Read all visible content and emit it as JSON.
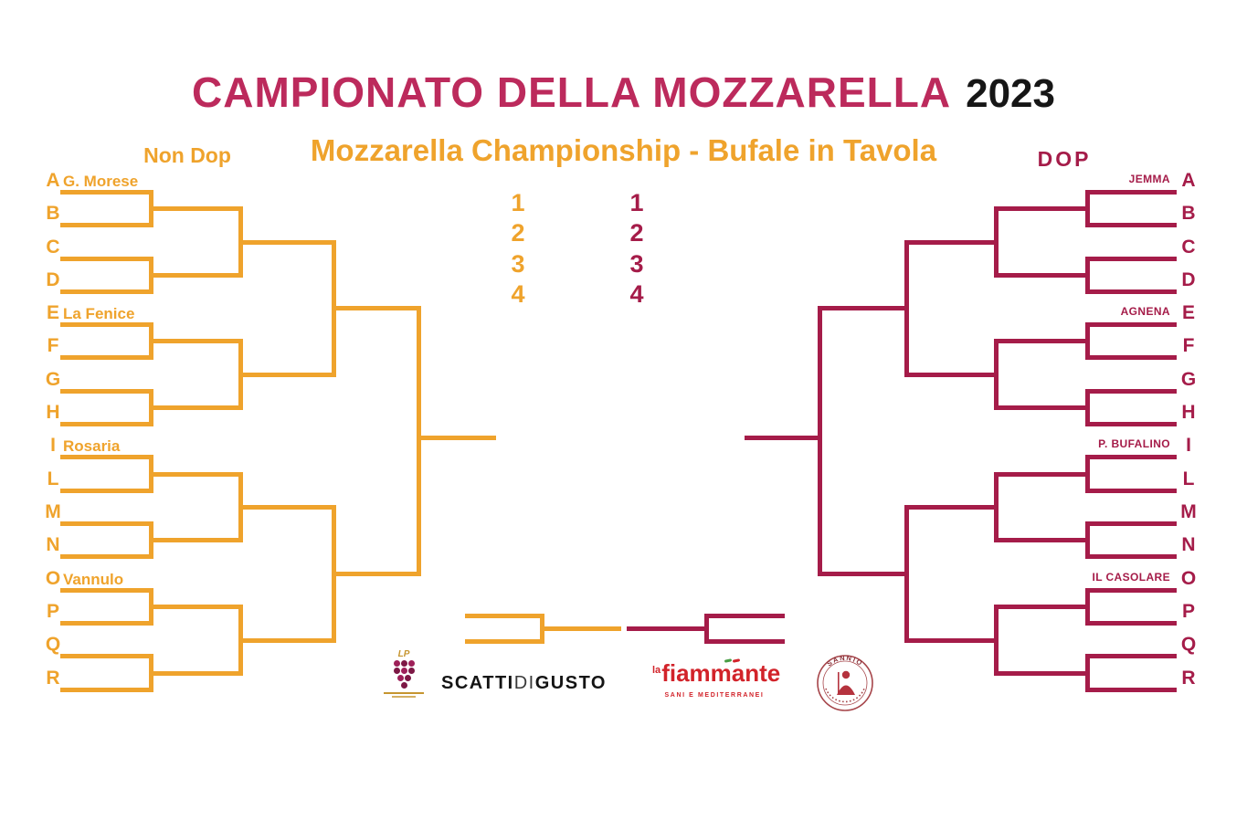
{
  "header": {
    "title": "CAMPIONATO DELLA MOZZARELLA",
    "year": "2023",
    "subtitle": "Mozzarella Championship - Bufale in Tavola"
  },
  "colors": {
    "orange": "#EFA32C",
    "crimson": "#A51C49",
    "title_pink": "#BC2A5C",
    "year_black": "#161616",
    "fiammante_red": "#D2232A",
    "grape_purple": "#9E2059",
    "grape_gold": "#C6952F",
    "sannio_red": "#A6454A"
  },
  "left_bracket": {
    "header": "Non Dop",
    "entries": [
      {
        "letter": "A",
        "name": "G. Morese"
      },
      {
        "letter": "B"
      },
      {
        "letter": "C"
      },
      {
        "letter": "D"
      },
      {
        "letter": "E",
        "name": "La Fenice"
      },
      {
        "letter": "F"
      },
      {
        "letter": "G"
      },
      {
        "letter": "H"
      },
      {
        "letter": "I",
        "name": "Rosaria"
      },
      {
        "letter": "L"
      },
      {
        "letter": "M"
      },
      {
        "letter": "N"
      },
      {
        "letter": "O",
        "name": "Vannulo"
      },
      {
        "letter": "P"
      },
      {
        "letter": "Q"
      },
      {
        "letter": "R"
      }
    ]
  },
  "right_bracket": {
    "header": "DOP",
    "entries": [
      {
        "letter": "A",
        "name": "JEMMA"
      },
      {
        "letter": "B"
      },
      {
        "letter": "C"
      },
      {
        "letter": "D"
      },
      {
        "letter": "E",
        "name": "AGNENA"
      },
      {
        "letter": "F"
      },
      {
        "letter": "G"
      },
      {
        "letter": "H"
      },
      {
        "letter": "I",
        "name": "P. BUFALINO"
      },
      {
        "letter": "L"
      },
      {
        "letter": "M"
      },
      {
        "letter": "N"
      },
      {
        "letter": "O",
        "name": "IL CASOLARE"
      },
      {
        "letter": "P"
      },
      {
        "letter": "Q"
      },
      {
        "letter": "R"
      }
    ]
  },
  "center": {
    "left_ranks": [
      "1",
      "2",
      "3",
      "4"
    ],
    "right_ranks": [
      "1",
      "2",
      "3",
      "4"
    ]
  },
  "sponsors": {
    "pignataro": {
      "monogram": "LP"
    },
    "scattidigusto": {
      "word1": "SCATTI",
      "word2": "DI",
      "word3": "GUSTO"
    },
    "fiammante": {
      "prefix": "la",
      "name": "fiammante",
      "tagline": "SANI E MEDITERRANEI"
    },
    "sannio": {
      "top_label": "SANNIO"
    }
  }
}
